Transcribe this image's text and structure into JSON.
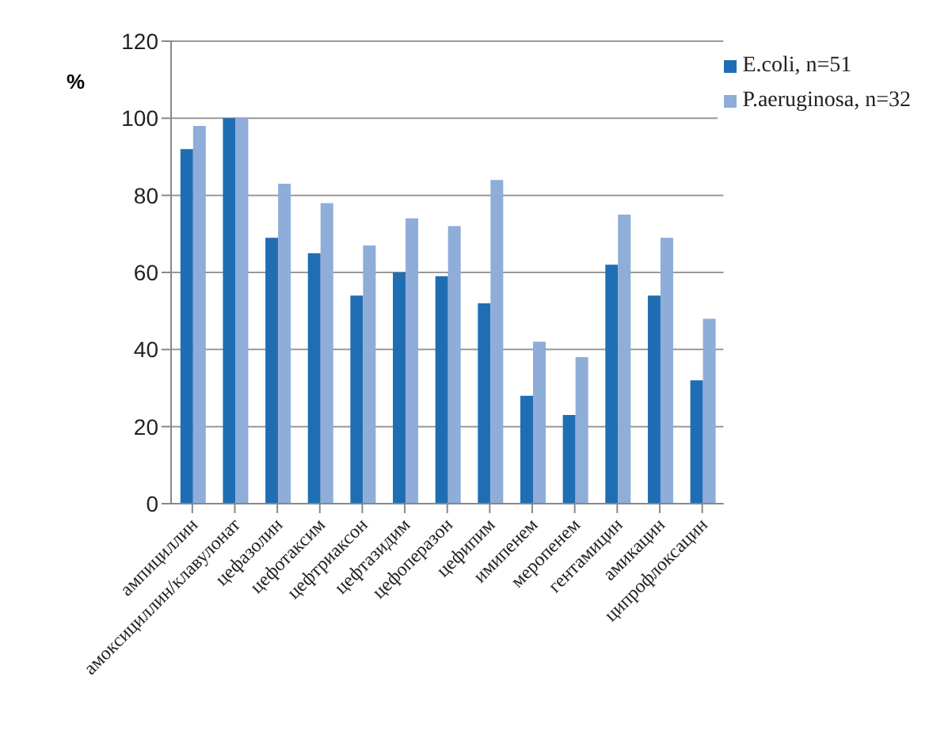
{
  "chart_data": {
    "type": "bar",
    "ylabel": "%",
    "categories": [
      "ампициллин",
      "амоксициллин/клавулонат",
      "цефазолин",
      "цефотаксим",
      "цефтриаксон",
      "цефтазидим",
      "цефоперазон",
      "цефипим",
      "имипенем",
      "меропенем",
      "гентамицин",
      "амикацин",
      "ципрофлоксацин"
    ],
    "series": [
      {
        "name": "E.coli, n=51",
        "color": "#1f6eb4",
        "values": [
          92,
          100,
          69,
          65,
          54,
          60,
          59,
          52,
          28,
          23,
          62,
          54,
          32
        ]
      },
      {
        "name": "P.aeruginosa, n=32",
        "color": "#8eadd8",
        "values": [
          98,
          100,
          83,
          78,
          67,
          74,
          72,
          84,
          42,
          38,
          75,
          69,
          48
        ]
      }
    ],
    "ylim": [
      0,
      120
    ],
    "yticks": [
      0,
      20,
      40,
      60,
      80,
      100,
      120
    ],
    "grid": "y",
    "legend": "top right"
  }
}
